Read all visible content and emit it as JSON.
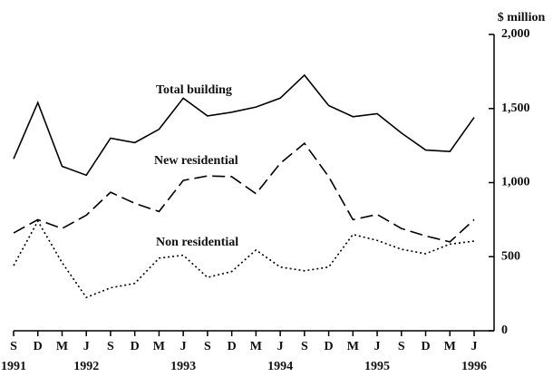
{
  "chart_data": {
    "type": "line",
    "y_unit": "$ million",
    "categories": [
      "S",
      "D",
      "M",
      "J",
      "S",
      "D",
      "M",
      "J",
      "S",
      "D",
      "M",
      "J",
      "S",
      "D",
      "M",
      "J",
      "S",
      "D",
      "M",
      "J"
    ],
    "years": [
      "1991",
      null,
      null,
      "1992",
      null,
      null,
      null,
      "1993",
      null,
      null,
      null,
      "1994",
      null,
      null,
      null,
      "1995",
      null,
      null,
      null,
      "1996"
    ],
    "series": [
      {
        "name": "Total building",
        "color": "#000000",
        "dash": "solid",
        "values": [
          1160,
          1540,
          1110,
          1050,
          1300,
          1270,
          1360,
          1570,
          1450,
          1475,
          1510,
          1570,
          1725,
          1520,
          1445,
          1465,
          1335,
          1220,
          1210,
          1440
        ]
      },
      {
        "name": "New residential",
        "color": "#000000",
        "dash": "dashed",
        "values": [
          660,
          750,
          690,
          780,
          935,
          860,
          805,
          1015,
          1045,
          1040,
          925,
          1130,
          1265,
          1040,
          750,
          785,
          690,
          640,
          600,
          750
        ]
      },
      {
        "name": "Non residential",
        "color": "#000000",
        "dash": "dotted",
        "values": [
          440,
          740,
          460,
          225,
          290,
          320,
          490,
          510,
          360,
          400,
          545,
          430,
          405,
          430,
          650,
          610,
          550,
          520,
          585,
          605
        ]
      }
    ],
    "ylim": [
      0,
      2000
    ],
    "yticks": [
      {
        "value": 0,
        "label": "0"
      },
      {
        "value": 500,
        "label": "500"
      },
      {
        "value": 1000,
        "label": "1,000"
      },
      {
        "value": 1500,
        "label": "1,500"
      },
      {
        "value": 2000,
        "label": "2,000"
      }
    ],
    "grid": false
  }
}
